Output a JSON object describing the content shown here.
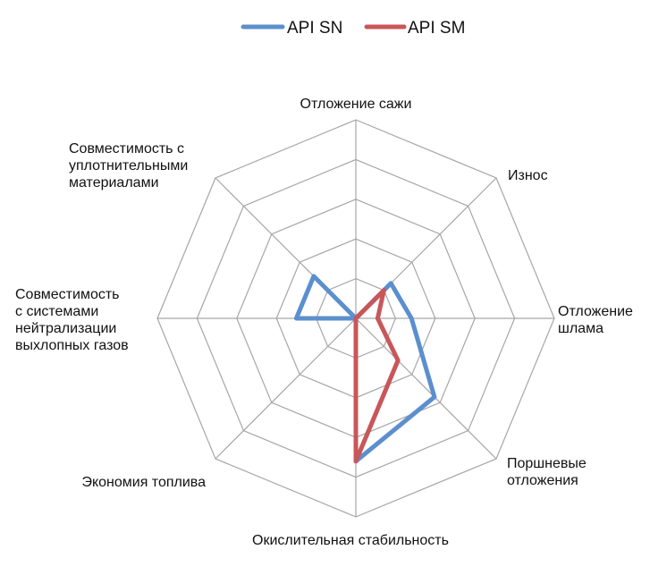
{
  "chart_data": {
    "type": "radar",
    "axes": [
      [
        "Отложение сажи"
      ],
      [
        "Износ"
      ],
      [
        "Отложение",
        "шлама"
      ],
      [
        "Поршневые",
        "отложения"
      ],
      [
        "Окислительная стабильность"
      ],
      [
        "Экономия топлива"
      ],
      [
        "Совместимость",
        "с системами",
        "нейтрализации",
        "выхлопных газов"
      ],
      [
        "Совместимость с",
        "уплотнительными",
        "материалами"
      ]
    ],
    "rlim": [
      0,
      5
    ],
    "rings": 5,
    "grid": true,
    "legend_position": "top",
    "series": [
      {
        "name": "API SN",
        "color": "#5b8fce",
        "values": [
          0,
          1.25,
          1.4,
          2.8,
          3.6,
          0,
          1.5,
          1.5
        ]
      },
      {
        "name": "API SM",
        "color": "#c8575a",
        "values": [
          0,
          1.0,
          0.55,
          1.5,
          3.6,
          0,
          0,
          0
        ]
      }
    ]
  }
}
